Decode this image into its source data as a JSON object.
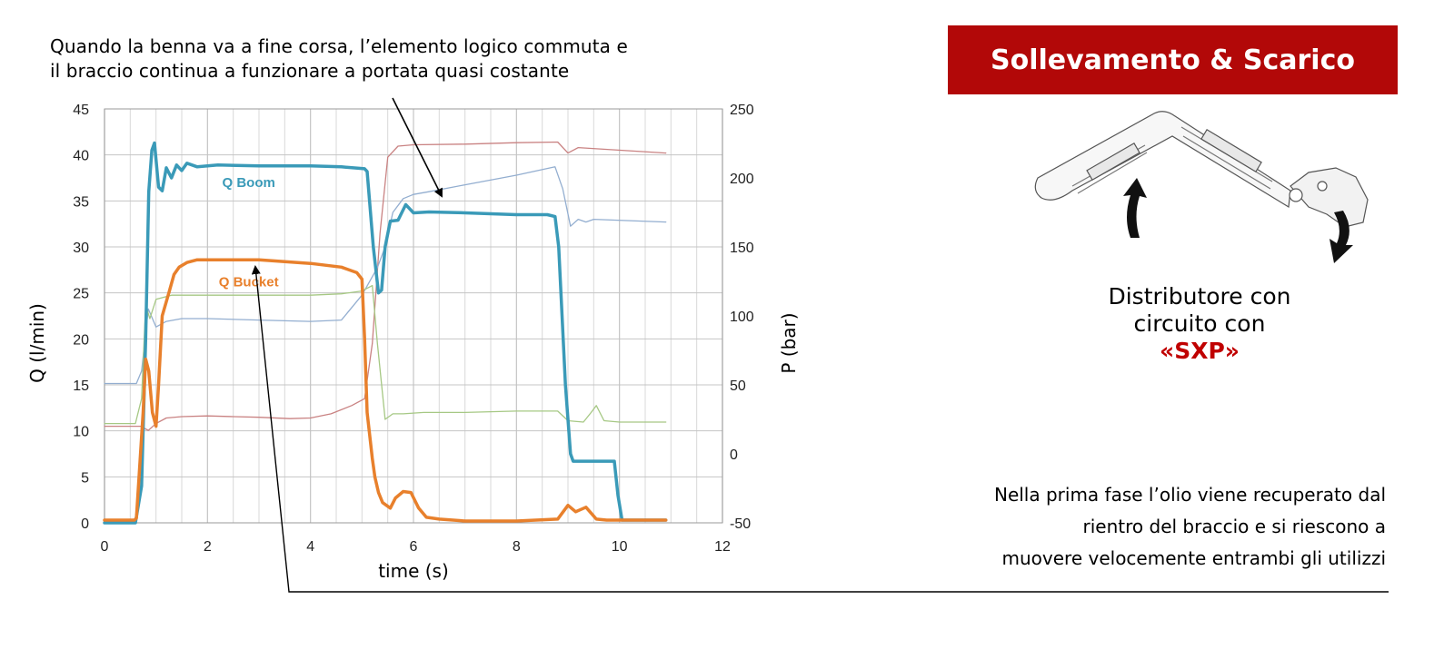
{
  "annotation_top": {
    "line1": "Quando la benna va a fine corsa, l’elemento logico commuta e",
    "line2": "il braccio continua a funzionare a portata quasi costante"
  },
  "badge": {
    "title": "Sollevamento & Scarico"
  },
  "caption": {
    "line1": "Distributore con",
    "line2": "circuito con",
    "highlight": "«SXP»"
  },
  "note_bottom": {
    "line1": "Nella prima fase l’olio viene recuperato dal",
    "line2": "rientro del braccio e si riescono  a",
    "line3": "muovere velocemente entrambi gli utilizzi"
  },
  "colors": {
    "q_boom": "#3a9ab8",
    "q_bucket": "#e8802c",
    "p_red": "#c98282",
    "p_blue": "#93aed0",
    "p_green": "#a6c884",
    "badge": "#b20808",
    "highlight": "#c00000"
  },
  "chart_data": {
    "type": "line",
    "xlabel": "time (s)",
    "ylabel": "Q (l/min)",
    "y2label": "P (bar)",
    "xlim": [
      0,
      12
    ],
    "ylim": [
      0,
      45
    ],
    "y2lim": [
      -50,
      250
    ],
    "x_ticks": [
      "0",
      "2",
      "4",
      "6",
      "8",
      "10",
      "12"
    ],
    "y_ticks": [
      "0",
      "5",
      "10",
      "15",
      "20",
      "25",
      "30",
      "35",
      "40",
      "45"
    ],
    "y2_ticks": [
      "-50",
      "0",
      "50",
      "100",
      "150",
      "200",
      "250"
    ],
    "grid": true,
    "series": [
      {
        "name": "Q Boom",
        "axis": "left",
        "color": "#3a9ab8",
        "width": 3.5,
        "x": [
          0,
          0.6,
          0.72,
          0.8,
          0.86,
          0.92,
          0.97,
          1.05,
          1.12,
          1.2,
          1.3,
          1.4,
          1.5,
          1.6,
          1.8,
          2.2,
          3,
          4,
          4.6,
          5.05,
          5.1,
          5.22,
          5.32,
          5.38,
          5.45,
          5.55,
          5.7,
          5.85,
          6.0,
          6.3,
          7,
          8,
          8.6,
          8.75,
          8.82,
          8.95,
          9.05,
          9.1,
          9.3,
          9.6,
          9.9,
          9.97,
          10.05,
          10.9
        ],
        "y": [
          0,
          0,
          4,
          20,
          36,
          40.5,
          41.3,
          36.5,
          36.1,
          38.6,
          37.5,
          38.9,
          38.3,
          39.1,
          38.7,
          38.9,
          38.8,
          38.8,
          38.7,
          38.5,
          38.2,
          30,
          25,
          25.3,
          30,
          32.8,
          32.9,
          34.6,
          33.7,
          33.8,
          33.7,
          33.5,
          33.5,
          33.3,
          30,
          15,
          7.5,
          6.7,
          6.7,
          6.7,
          6.7,
          3,
          0.3,
          0.3
        ]
      },
      {
        "name": "Q Bucket",
        "axis": "left",
        "color": "#e8802c",
        "width": 3.5,
        "x": [
          0,
          0.58,
          0.62,
          0.75,
          0.8,
          0.86,
          0.93,
          1.0,
          1.05,
          1.12,
          1.25,
          1.35,
          1.45,
          1.6,
          1.8,
          2.2,
          3,
          4,
          4.6,
          4.9,
          5.0,
          5.05,
          5.1,
          5.2,
          5.25,
          5.32,
          5.4,
          5.55,
          5.65,
          5.8,
          5.95,
          6.1,
          6.25,
          6.5,
          7,
          8,
          8.8,
          9.0,
          9.15,
          9.35,
          9.55,
          9.75,
          10.9
        ],
        "y": [
          0.3,
          0.3,
          0.5,
          12,
          17.8,
          16.5,
          12,
          10.5,
          15,
          22.5,
          25,
          27,
          27.8,
          28.3,
          28.6,
          28.6,
          28.6,
          28.2,
          27.8,
          27.2,
          26.5,
          20,
          12,
          7,
          5,
          3.3,
          2.2,
          1.6,
          2.7,
          3.4,
          3.3,
          1.6,
          0.6,
          0.4,
          0.2,
          0.2,
          0.4,
          1.9,
          1.2,
          1.7,
          0.4,
          0.3,
          0.3
        ]
      },
      {
        "name": "",
        "axis": "right",
        "color": "#c98282",
        "width": 1.3,
        "x": [
          0,
          0.7,
          0.85,
          1.0,
          1.2,
          1.5,
          2,
          2.5,
          3,
          3.6,
          4,
          4.4,
          4.8,
          5.05,
          5.2,
          5.35,
          5.5,
          5.7,
          6.0,
          7,
          8,
          8.8,
          9.0,
          9.2,
          10.9
        ],
        "y": [
          20,
          20,
          17,
          22,
          26,
          27,
          27.5,
          27,
          26.5,
          25.5,
          26,
          29,
          35,
          40,
          80,
          160,
          215,
          223,
          224,
          224.5,
          225.5,
          226,
          218,
          222,
          218
        ]
      },
      {
        "name": "",
        "axis": "right",
        "color": "#93aed0",
        "width": 1.3,
        "x": [
          0,
          0.62,
          0.72,
          0.85,
          1.0,
          1.2,
          1.5,
          2,
          3,
          4,
          4.6,
          5.0,
          5.3,
          5.45,
          5.6,
          5.8,
          6,
          6.3,
          7,
          8,
          8.75,
          8.9,
          9.05,
          9.2,
          9.35,
          9.5,
          10.9
        ],
        "y": [
          51,
          51,
          60,
          105,
          92,
          96,
          98,
          98,
          97,
          96,
          97,
          115,
          135,
          150,
          175,
          185,
          188,
          190,
          195,
          202,
          208,
          192,
          165,
          170,
          168,
          170,
          168
        ]
      },
      {
        "name": "",
        "axis": "right",
        "color": "#a6c884",
        "width": 1.3,
        "x": [
          0,
          0.6,
          0.72,
          0.8,
          0.88,
          1.0,
          1.1,
          1.3,
          1.5,
          2,
          3,
          4,
          4.6,
          5.0,
          5.2,
          5.3,
          5.45,
          5.6,
          5.8,
          6.2,
          7,
          8,
          8.8,
          9.0,
          9.3,
          9.45,
          9.55,
          9.7,
          10.0,
          10.9
        ],
        "y": [
          22,
          22,
          40,
          108,
          98,
          112,
          113,
          115,
          115,
          115,
          115,
          115,
          116,
          118,
          122,
          80,
          25,
          29,
          29,
          30,
          30,
          31,
          31,
          24,
          23,
          30,
          35,
          24,
          23,
          23
        ]
      }
    ],
    "annotations": [
      {
        "text": "Q Boom",
        "x": 2.8,
        "y": 36.5,
        "color": "#3a9ab8"
      },
      {
        "text": "Q Bucket",
        "x": 2.8,
        "y": 25.7,
        "color": "#e8802c"
      }
    ]
  }
}
